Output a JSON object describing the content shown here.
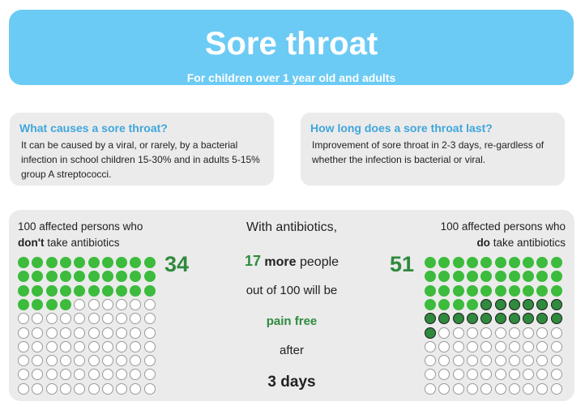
{
  "header": {
    "title": "Sore throat",
    "subtitle": "For children over 1 year old and adults"
  },
  "causes": {
    "question": "What causes a sore throat?",
    "answer": "It can be caused by a viral, or rarely, by a bacterial infection in school children 15-30% and in adults 5-15% group A streptococci."
  },
  "duration": {
    "question": "How long does a sore throat last?",
    "answer": "Improvement of sore throat in 2-3 days, re-gardless of whether the infection is bacterial or viral."
  },
  "comparison": {
    "without": {
      "label_line1": "100 affected persons who",
      "label_bold": "don't",
      "label_rest": " take antibiotics",
      "count_label": "34",
      "pain_free": 34,
      "total": 100
    },
    "with": {
      "label_line1": "100 affected persons who",
      "label_bold": "do",
      "label_rest": " take antibiotics",
      "count_label": "51",
      "pain_free_baseline": 34,
      "extra_pain_free": 17,
      "total": 100
    },
    "center": {
      "line1": "With antibiotics,",
      "number": "17",
      "more": "more",
      "people": " people",
      "line3": "out of 100 will be",
      "line4": "pain free",
      "line5": "after",
      "line6": "3 days"
    }
  },
  "colors": {
    "banner": "#6ccbf4",
    "question": "#3fa6dc",
    "green": "#3cbb3c",
    "dark_green": "#2f8a3e",
    "panel": "#ebebeb"
  }
}
